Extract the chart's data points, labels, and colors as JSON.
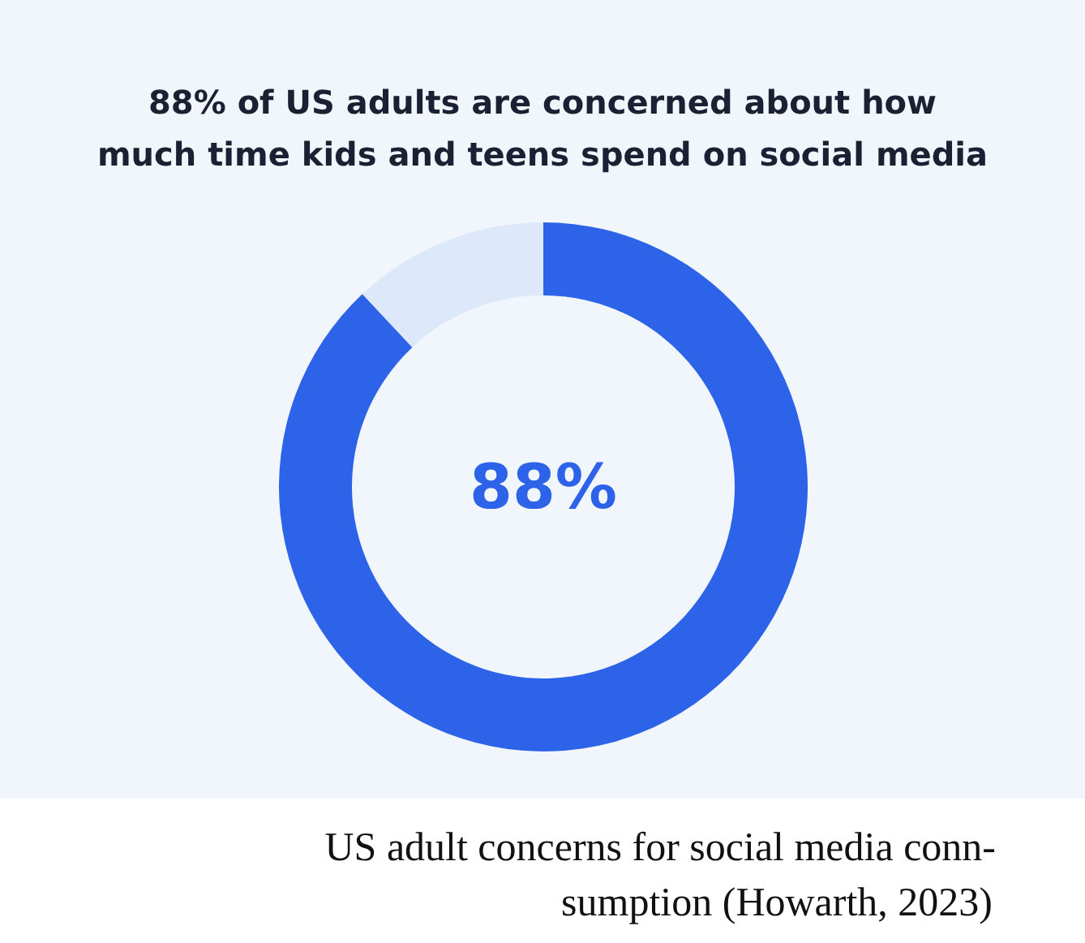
{
  "chart_data": {
    "type": "donut",
    "title": "88% of US adults are concerned about how\nmuch time kids and teens spend on social media",
    "categories": [
      null,
      null
    ],
    "values": [
      88,
      12
    ],
    "colors": [
      "#2d63e8",
      "#dde8fb"
    ],
    "annotations": [
      "88%",
      "US adult concerns for social media conn-\nsumption (Howarth, 2023)"
    ]
  }
}
